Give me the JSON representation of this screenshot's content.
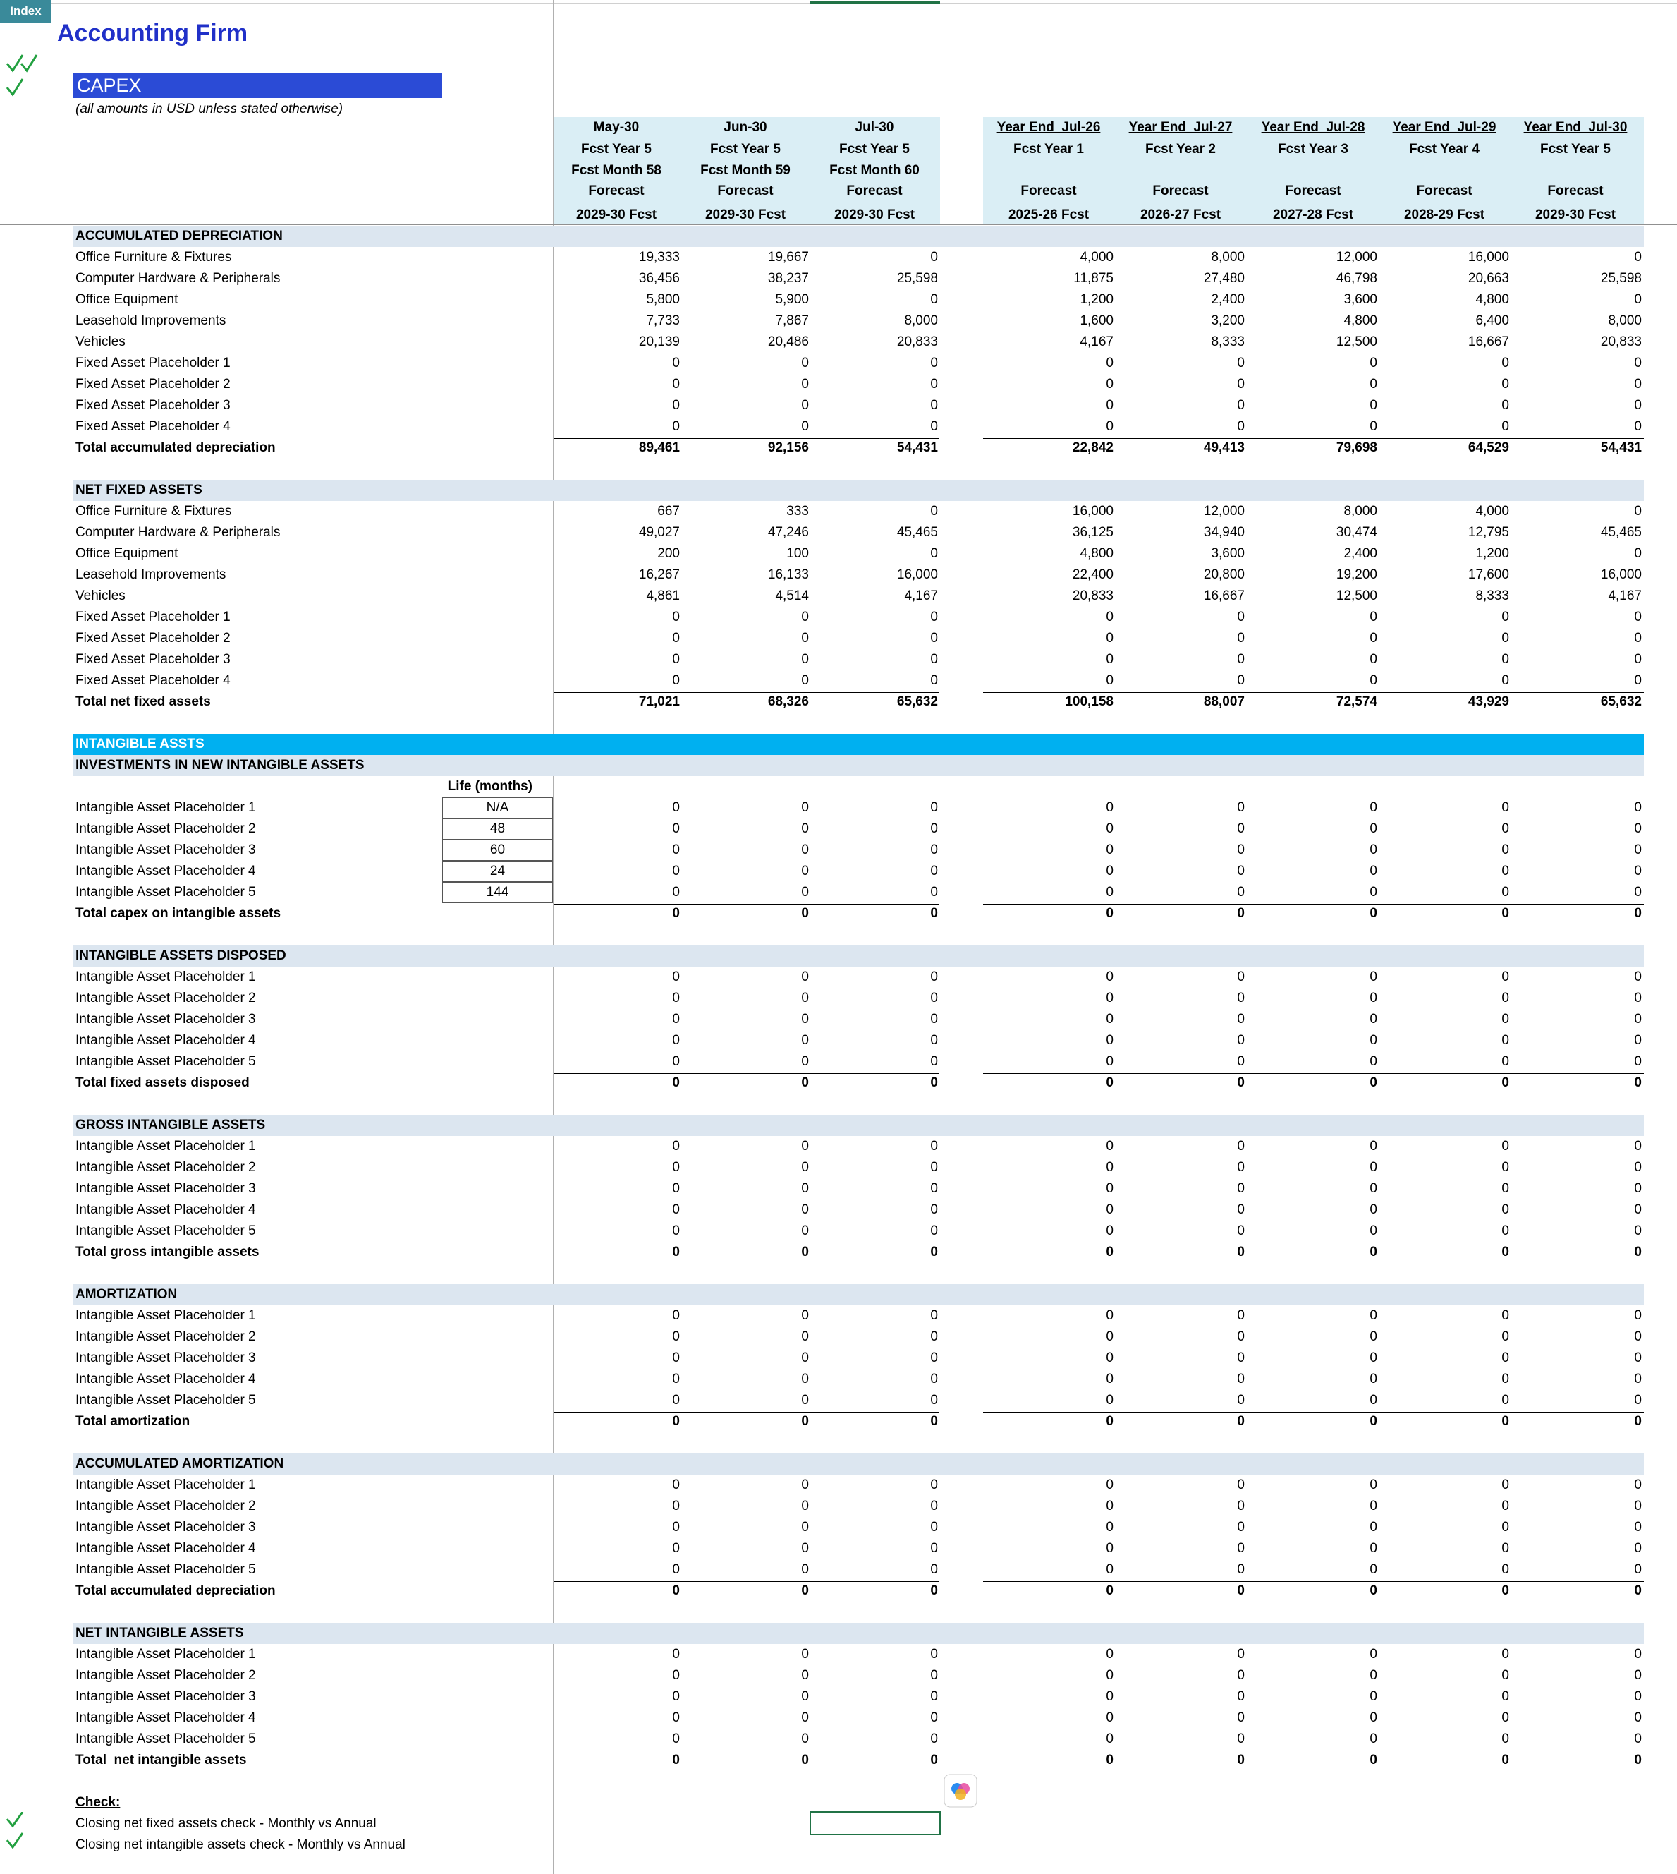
{
  "header": {
    "index_button": "Index",
    "title": "Accounting Firm",
    "sheet_title": "CAPEX",
    "note": "(all amounts in USD unless stated otherwise)"
  },
  "columns": [
    {
      "date": "May-30",
      "year": "Fcst Year 5",
      "month": "Fcst Month 58",
      "kind": "Forecast",
      "period": "2029-30 Fcst"
    },
    {
      "date": "Jun-30",
      "year": "Fcst Year 5",
      "month": "Fcst Month 59",
      "kind": "Forecast",
      "period": "2029-30 Fcst"
    },
    {
      "date": "Jul-30",
      "year": "Fcst Year 5",
      "month": "Fcst Month 60",
      "kind": "Forecast",
      "period": "2029-30 Fcst"
    },
    {
      "date": "Year End  Jul-26",
      "year": "Fcst Year 1",
      "kind": "Forecast",
      "period": "2025-26 Fcst"
    },
    {
      "date": "Year End  Jul-27",
      "year": "Fcst Year 2",
      "kind": "Forecast",
      "period": "2026-27 Fcst"
    },
    {
      "date": "Year End  Jul-28",
      "year": "Fcst Year 3",
      "kind": "Forecast",
      "period": "2027-28 Fcst"
    },
    {
      "date": "Year End  Jul-29",
      "year": "Fcst Year 4",
      "kind": "Forecast",
      "period": "2028-29 Fcst"
    },
    {
      "date": "Year End  Jul-30",
      "year": "Fcst Year 5",
      "kind": "Forecast",
      "period": "2029-30 Fcst"
    }
  ],
  "sections": [
    {
      "title": "ACCUMULATED DEPRECIATION",
      "rows": [
        {
          "label": "Office Furniture & Fixtures",
          "values": [
            "19,333",
            "19,667",
            "0",
            "4,000",
            "8,000",
            "12,000",
            "16,000",
            "0"
          ]
        },
        {
          "label": "Computer Hardware & Peripherals",
          "values": [
            "36,456",
            "38,237",
            "25,598",
            "11,875",
            "27,480",
            "46,798",
            "20,663",
            "25,598"
          ]
        },
        {
          "label": "Office Equipment",
          "values": [
            "5,800",
            "5,900",
            "0",
            "1,200",
            "2,400",
            "3,600",
            "4,800",
            "0"
          ]
        },
        {
          "label": "Leasehold Improvements",
          "values": [
            "7,733",
            "7,867",
            "8,000",
            "1,600",
            "3,200",
            "4,800",
            "6,400",
            "8,000"
          ]
        },
        {
          "label": "Vehicles",
          "values": [
            "20,139",
            "20,486",
            "20,833",
            "4,167",
            "8,333",
            "12,500",
            "16,667",
            "20,833"
          ]
        },
        {
          "label": "Fixed Asset Placeholder 1",
          "values": [
            "0",
            "0",
            "0",
            "0",
            "0",
            "0",
            "0",
            "0"
          ]
        },
        {
          "label": "Fixed Asset Placeholder 2",
          "values": [
            "0",
            "0",
            "0",
            "0",
            "0",
            "0",
            "0",
            "0"
          ]
        },
        {
          "label": "Fixed Asset Placeholder 3",
          "values": [
            "0",
            "0",
            "0",
            "0",
            "0",
            "0",
            "0",
            "0"
          ]
        },
        {
          "label": "Fixed Asset Placeholder 4",
          "values": [
            "0",
            "0",
            "0",
            "0",
            "0",
            "0",
            "0",
            "0"
          ]
        }
      ],
      "total": {
        "label": "Total accumulated depreciation",
        "values": [
          "89,461",
          "92,156",
          "54,431",
          "22,842",
          "49,413",
          "79,698",
          "64,529",
          "54,431"
        ]
      }
    },
    {
      "title": "NET FIXED ASSETS",
      "rows": [
        {
          "label": "Office Furniture & Fixtures",
          "values": [
            "667",
            "333",
            "0",
            "16,000",
            "12,000",
            "8,000",
            "4,000",
            "0"
          ]
        },
        {
          "label": "Computer Hardware & Peripherals",
          "values": [
            "49,027",
            "47,246",
            "45,465",
            "36,125",
            "34,940",
            "30,474",
            "12,795",
            "45,465"
          ]
        },
        {
          "label": "Office Equipment",
          "values": [
            "200",
            "100",
            "0",
            "4,800",
            "3,600",
            "2,400",
            "1,200",
            "0"
          ]
        },
        {
          "label": "Leasehold Improvements",
          "values": [
            "16,267",
            "16,133",
            "16,000",
            "22,400",
            "20,800",
            "19,200",
            "17,600",
            "16,000"
          ]
        },
        {
          "label": "Vehicles",
          "values": [
            "4,861",
            "4,514",
            "4,167",
            "20,833",
            "16,667",
            "12,500",
            "8,333",
            "4,167"
          ]
        },
        {
          "label": "Fixed Asset Placeholder 1",
          "values": [
            "0",
            "0",
            "0",
            "0",
            "0",
            "0",
            "0",
            "0"
          ]
        },
        {
          "label": "Fixed Asset Placeholder 2",
          "values": [
            "0",
            "0",
            "0",
            "0",
            "0",
            "0",
            "0",
            "0"
          ]
        },
        {
          "label": "Fixed Asset Placeholder 3",
          "values": [
            "0",
            "0",
            "0",
            "0",
            "0",
            "0",
            "0",
            "0"
          ]
        },
        {
          "label": "Fixed Asset Placeholder 4",
          "values": [
            "0",
            "0",
            "0",
            "0",
            "0",
            "0",
            "0",
            "0"
          ]
        }
      ],
      "total": {
        "label": "Total net fixed assets",
        "values": [
          "71,021",
          "68,326",
          "65,632",
          "100,158",
          "88,007",
          "72,574",
          "43,929",
          "65,632"
        ]
      }
    }
  ],
  "intangibles": {
    "banner": "INTANGIBLE ASSTS",
    "life_header": "Life (months)",
    "sections": [
      {
        "title": "INVESTMENTS IN NEW INTANGIBLE ASSETS",
        "rows": [
          {
            "label": "Intangible Asset Placeholder 1",
            "life": "N/A",
            "values": [
              "0",
              "0",
              "0",
              "0",
              "0",
              "0",
              "0",
              "0"
            ]
          },
          {
            "label": "Intangible Asset Placeholder 2",
            "life": "48",
            "values": [
              "0",
              "0",
              "0",
              "0",
              "0",
              "0",
              "0",
              "0"
            ]
          },
          {
            "label": "Intangible Asset Placeholder 3",
            "life": "60",
            "values": [
              "0",
              "0",
              "0",
              "0",
              "0",
              "0",
              "0",
              "0"
            ]
          },
          {
            "label": "Intangible Asset Placeholder 4",
            "life": "24",
            "values": [
              "0",
              "0",
              "0",
              "0",
              "0",
              "0",
              "0",
              "0"
            ]
          },
          {
            "label": "Intangible Asset Placeholder 5",
            "life": "144",
            "values": [
              "0",
              "0",
              "0",
              "0",
              "0",
              "0",
              "0",
              "0"
            ]
          }
        ],
        "total": {
          "label": "Total capex on intangible assets",
          "values": [
            "0",
            "0",
            "0",
            "0",
            "0",
            "0",
            "0",
            "0"
          ]
        }
      },
      {
        "title": "INTANGIBLE ASSETS DISPOSED",
        "rows": [
          {
            "label": "Intangible Asset Placeholder 1",
            "values": [
              "0",
              "0",
              "0",
              "0",
              "0",
              "0",
              "0",
              "0"
            ]
          },
          {
            "label": "Intangible Asset Placeholder 2",
            "values": [
              "0",
              "0",
              "0",
              "0",
              "0",
              "0",
              "0",
              "0"
            ]
          },
          {
            "label": "Intangible Asset Placeholder 3",
            "values": [
              "0",
              "0",
              "0",
              "0",
              "0",
              "0",
              "0",
              "0"
            ]
          },
          {
            "label": "Intangible Asset Placeholder 4",
            "values": [
              "0",
              "0",
              "0",
              "0",
              "0",
              "0",
              "0",
              "0"
            ]
          },
          {
            "label": "Intangible Asset Placeholder 5",
            "values": [
              "0",
              "0",
              "0",
              "0",
              "0",
              "0",
              "0",
              "0"
            ]
          }
        ],
        "total": {
          "label": "Total fixed assets disposed",
          "values": [
            "0",
            "0",
            "0",
            "0",
            "0",
            "0",
            "0",
            "0"
          ]
        }
      },
      {
        "title": "GROSS INTANGIBLE ASSETS",
        "rows": [
          {
            "label": "Intangible Asset Placeholder 1",
            "values": [
              "0",
              "0",
              "0",
              "0",
              "0",
              "0",
              "0",
              "0"
            ]
          },
          {
            "label": "Intangible Asset Placeholder 2",
            "values": [
              "0",
              "0",
              "0",
              "0",
              "0",
              "0",
              "0",
              "0"
            ]
          },
          {
            "label": "Intangible Asset Placeholder 3",
            "values": [
              "0",
              "0",
              "0",
              "0",
              "0",
              "0",
              "0",
              "0"
            ]
          },
          {
            "label": "Intangible Asset Placeholder 4",
            "values": [
              "0",
              "0",
              "0",
              "0",
              "0",
              "0",
              "0",
              "0"
            ]
          },
          {
            "label": "Intangible Asset Placeholder 5",
            "values": [
              "0",
              "0",
              "0",
              "0",
              "0",
              "0",
              "0",
              "0"
            ]
          }
        ],
        "total": {
          "label": "Total gross intangible assets",
          "values": [
            "0",
            "0",
            "0",
            "0",
            "0",
            "0",
            "0",
            "0"
          ]
        }
      },
      {
        "title": "AMORTIZATION",
        "rows": [
          {
            "label": "Intangible Asset Placeholder 1",
            "values": [
              "0",
              "0",
              "0",
              "0",
              "0",
              "0",
              "0",
              "0"
            ]
          },
          {
            "label": "Intangible Asset Placeholder 2",
            "values": [
              "0",
              "0",
              "0",
              "0",
              "0",
              "0",
              "0",
              "0"
            ]
          },
          {
            "label": "Intangible Asset Placeholder 3",
            "values": [
              "0",
              "0",
              "0",
              "0",
              "0",
              "0",
              "0",
              "0"
            ]
          },
          {
            "label": "Intangible Asset Placeholder 4",
            "values": [
              "0",
              "0",
              "0",
              "0",
              "0",
              "0",
              "0",
              "0"
            ]
          },
          {
            "label": "Intangible Asset Placeholder 5",
            "values": [
              "0",
              "0",
              "0",
              "0",
              "0",
              "0",
              "0",
              "0"
            ]
          }
        ],
        "total": {
          "label": "Total amortization",
          "values": [
            "0",
            "0",
            "0",
            "0",
            "0",
            "0",
            "0",
            "0"
          ]
        }
      },
      {
        "title": "ACCUMULATED AMORTIZATION",
        "rows": [
          {
            "label": "Intangible Asset Placeholder 1",
            "values": [
              "0",
              "0",
              "0",
              "0",
              "0",
              "0",
              "0",
              "0"
            ]
          },
          {
            "label": "Intangible Asset Placeholder 2",
            "values": [
              "0",
              "0",
              "0",
              "0",
              "0",
              "0",
              "0",
              "0"
            ]
          },
          {
            "label": "Intangible Asset Placeholder 3",
            "values": [
              "0",
              "0",
              "0",
              "0",
              "0",
              "0",
              "0",
              "0"
            ]
          },
          {
            "label": "Intangible Asset Placeholder 4",
            "values": [
              "0",
              "0",
              "0",
              "0",
              "0",
              "0",
              "0",
              "0"
            ]
          },
          {
            "label": "Intangible Asset Placeholder 5",
            "values": [
              "0",
              "0",
              "0",
              "0",
              "0",
              "0",
              "0",
              "0"
            ]
          }
        ],
        "total": {
          "label": "Total accumulated depreciation",
          "values": [
            "0",
            "0",
            "0",
            "0",
            "0",
            "0",
            "0",
            "0"
          ]
        }
      },
      {
        "title": "NET INTANGIBLE ASSETS",
        "rows": [
          {
            "label": "Intangible Asset Placeholder 1",
            "values": [
              "0",
              "0",
              "0",
              "0",
              "0",
              "0",
              "0",
              "0"
            ]
          },
          {
            "label": "Intangible Asset Placeholder 2",
            "values": [
              "0",
              "0",
              "0",
              "0",
              "0",
              "0",
              "0",
              "0"
            ]
          },
          {
            "label": "Intangible Asset Placeholder 3",
            "values": [
              "0",
              "0",
              "0",
              "0",
              "0",
              "0",
              "0",
              "0"
            ]
          },
          {
            "label": "Intangible Asset Placeholder 4",
            "values": [
              "0",
              "0",
              "0",
              "0",
              "0",
              "0",
              "0",
              "0"
            ]
          },
          {
            "label": "Intangible Asset Placeholder 5",
            "values": [
              "0",
              "0",
              "0",
              "0",
              "0",
              "0",
              "0",
              "0"
            ]
          }
        ],
        "total": {
          "label": "Total  net intangible assets",
          "values": [
            "0",
            "0",
            "0",
            "0",
            "0",
            "0",
            "0",
            "0"
          ]
        }
      }
    ]
  },
  "checks": {
    "title": "Check:",
    "items": [
      "Closing net fixed assets check - Monthly vs Annual",
      "Closing net intangible assets check - Monthly vs Annual"
    ]
  }
}
